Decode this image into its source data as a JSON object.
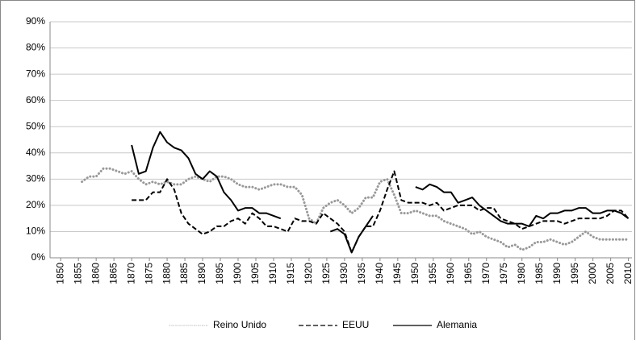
{
  "chart_data": {
    "type": "line",
    "x": [
      1856,
      1858,
      1860,
      1862,
      1864,
      1866,
      1868,
      1870,
      1872,
      1874,
      1876,
      1878,
      1880,
      1882,
      1884,
      1886,
      1888,
      1890,
      1892,
      1894,
      1896,
      1898,
      1900,
      1902,
      1904,
      1906,
      1908,
      1910,
      1912,
      1914,
      1916,
      1918,
      1920,
      1922,
      1924,
      1926,
      1928,
      1930,
      1932,
      1934,
      1936,
      1938,
      1940,
      1942,
      1944,
      1946,
      1948,
      1950,
      1952,
      1954,
      1956,
      1958,
      1960,
      1962,
      1964,
      1966,
      1968,
      1970,
      1972,
      1974,
      1976,
      1978,
      1980,
      1982,
      1984,
      1986,
      1988,
      1990,
      1992,
      1994,
      1996,
      1998,
      2000,
      2002,
      2004,
      2006,
      2008,
      2010
    ],
    "series": [
      {
        "name": "Reino Unido",
        "color": "#999999",
        "line_style": "dotted",
        "values": [
          29,
          31,
          31,
          34,
          34,
          33,
          32,
          33,
          30,
          28,
          29,
          28,
          29,
          28,
          28,
          30,
          31,
          30,
          29,
          31,
          31,
          30,
          28,
          27,
          27,
          26,
          27,
          28,
          28,
          27,
          27,
          24,
          15,
          13,
          19,
          21,
          22,
          20,
          17,
          19,
          23,
          23,
          29,
          30,
          24,
          17,
          17,
          18,
          17,
          16,
          16,
          14,
          13,
          12,
          11,
          9,
          10,
          8,
          7,
          6,
          4,
          5,
          3,
          4,
          6,
          6,
          7,
          6,
          5,
          6,
          8,
          10,
          8,
          7,
          7,
          7,
          7,
          7
        ]
      },
      {
        "name": "EEUU",
        "color": "#000000",
        "line_style": "dashed",
        "values": [
          null,
          null,
          null,
          null,
          null,
          null,
          null,
          22,
          22,
          22,
          25,
          25,
          30,
          26,
          17,
          13,
          11,
          9,
          10,
          12,
          12,
          14,
          15,
          13,
          17,
          15,
          12,
          12,
          11,
          10,
          15,
          14,
          14,
          13,
          17,
          15,
          13,
          10,
          2,
          8,
          12,
          12,
          18,
          26,
          33,
          22,
          21,
          21,
          21,
          20,
          21,
          18,
          19,
          20,
          20,
          20,
          18,
          19,
          19,
          15,
          14,
          13,
          11,
          12,
          13,
          14,
          14,
          14,
          13,
          14,
          15,
          15,
          15,
          15,
          16,
          18,
          18,
          15
        ]
      },
      {
        "name": "Alemania",
        "color": "#000000",
        "line_style": "solid",
        "values": [
          null,
          null,
          null,
          null,
          null,
          null,
          null,
          43,
          32,
          33,
          42,
          48,
          44,
          42,
          41,
          38,
          32,
          30,
          33,
          31,
          25,
          22,
          18,
          19,
          19,
          17,
          17,
          16,
          15,
          null,
          null,
          null,
          null,
          null,
          null,
          10,
          11,
          9,
          2,
          8,
          12,
          16,
          null,
          null,
          null,
          null,
          null,
          27,
          26,
          28,
          27,
          25,
          25,
          21,
          22,
          23,
          20,
          18,
          16,
          14,
          13,
          13,
          13,
          12,
          16,
          15,
          17,
          17,
          18,
          18,
          19,
          19,
          17,
          17,
          18,
          18,
          17,
          15
        ]
      }
    ],
    "xlim": [
      1847,
      2011
    ],
    "xticks": [
      1850,
      1855,
      1860,
      1865,
      1870,
      1875,
      1880,
      1885,
      1890,
      1895,
      1900,
      1905,
      1910,
      1915,
      1920,
      1925,
      1930,
      1935,
      1940,
      1945,
      1950,
      1955,
      1960,
      1965,
      1970,
      1975,
      1980,
      1985,
      1990,
      1995,
      2000,
      2005,
      2010
    ],
    "ylim": [
      0,
      90
    ],
    "yticks": [
      {
        "value": 0,
        "label": "0%"
      },
      {
        "value": 10,
        "label": "10%"
      },
      {
        "value": 20,
        "label": "20%"
      },
      {
        "value": 30,
        "label": "30%"
      },
      {
        "value": 40,
        "label": "40%"
      },
      {
        "value": 50,
        "label": "50%"
      },
      {
        "value": 60,
        "label": "60%"
      },
      {
        "value": 70,
        "label": "70%"
      },
      {
        "value": 80,
        "label": "80%"
      },
      {
        "value": 90,
        "label": "90%"
      }
    ],
    "grid": true,
    "legend": "bottom"
  }
}
